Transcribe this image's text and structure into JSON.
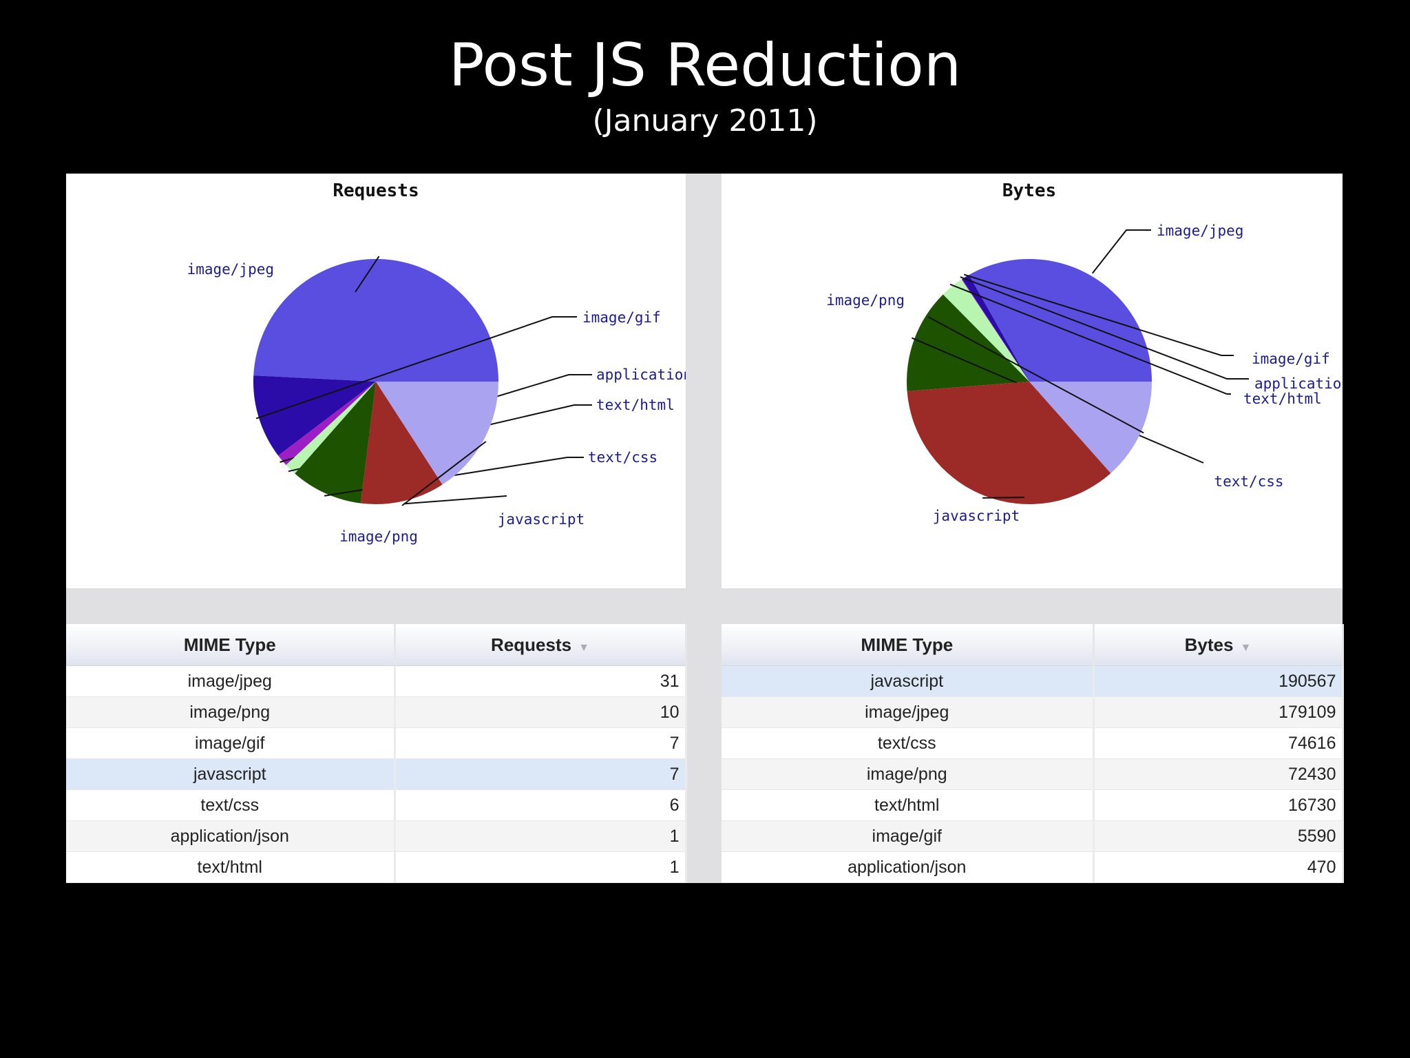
{
  "slide": {
    "title": "Post JS Reduction",
    "subtitle": "(January 2011)"
  },
  "chart_data": [
    {
      "type": "pie",
      "title": "Requests",
      "slices": [
        {
          "label": "image/jpeg",
          "value": 31,
          "color": "#5a4ee0"
        },
        {
          "label": "image/gif",
          "value": 7,
          "color": "#2b0ca8"
        },
        {
          "label": "application/json",
          "value": 1,
          "color": "#9b1fc4"
        },
        {
          "label": "text/html",
          "value": 1,
          "color": "#b8f5b0"
        },
        {
          "label": "text/css",
          "value": 6,
          "color": "#1d5200"
        },
        {
          "label": "javascript",
          "value": 7,
          "color": "#9c2a26"
        },
        {
          "label": "image/png",
          "value": 10,
          "color": "#a9a3f0"
        }
      ]
    },
    {
      "type": "pie",
      "title": "Bytes",
      "slices": [
        {
          "label": "image/jpeg",
          "value": 179109,
          "color": "#5a4ee0"
        },
        {
          "label": "image/gif",
          "value": 5590,
          "color": "#2b0ca8"
        },
        {
          "label": "application/json",
          "value": 470,
          "color": "#9b1fc4"
        },
        {
          "label": "text/html",
          "value": 16730,
          "color": "#b8f5b0"
        },
        {
          "label": "text/css",
          "value": 74616,
          "color": "#1d5200"
        },
        {
          "label": "javascript",
          "value": 190567,
          "color": "#9c2a26"
        },
        {
          "label": "image/png",
          "value": 72430,
          "color": "#a9a3f0"
        }
      ]
    }
  ],
  "tables": {
    "requests": {
      "headers": [
        "MIME Type",
        "Requests"
      ],
      "sort_arrow": "▼",
      "rows": [
        {
          "type": "image/jpeg",
          "value": "31"
        },
        {
          "type": "image/png",
          "value": "10"
        },
        {
          "type": "image/gif",
          "value": "7"
        },
        {
          "type": "javascript",
          "value": "7"
        },
        {
          "type": "text/css",
          "value": "6"
        },
        {
          "type": "application/json",
          "value": "1"
        },
        {
          "type": "text/html",
          "value": "1"
        }
      ]
    },
    "bytes": {
      "headers": [
        "MIME Type",
        "Bytes"
      ],
      "sort_arrow": "▼",
      "rows": [
        {
          "type": "javascript",
          "value": "190567"
        },
        {
          "type": "image/jpeg",
          "value": "179109"
        },
        {
          "type": "text/css",
          "value": "74616"
        },
        {
          "type": "image/png",
          "value": "72430"
        },
        {
          "type": "text/html",
          "value": "16730"
        },
        {
          "type": "image/gif",
          "value": "5590"
        },
        {
          "type": "application/json",
          "value": "470"
        }
      ]
    }
  }
}
